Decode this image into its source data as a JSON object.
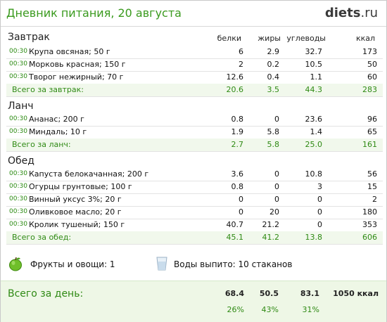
{
  "header": {
    "title": "Дневник питания, 20 августа",
    "logo_main": "diets",
    "logo_tld": ".ru"
  },
  "columns": {
    "protein": "белки",
    "fat": "жиры",
    "carbs": "углеводы",
    "kcal": "ккал"
  },
  "breakfast": {
    "title": "Завтрак",
    "items": [
      {
        "time": "00:30",
        "name": "Крупа овсяная; 50 г",
        "protein": "6",
        "fat": "2.9",
        "carbs": "32.7",
        "kcal": "173"
      },
      {
        "time": "00:30",
        "name": "Морковь красная; 150 г",
        "protein": "2",
        "fat": "0.2",
        "carbs": "10.5",
        "kcal": "50"
      },
      {
        "time": "00:30",
        "name": "Творог нежирный; 70 г",
        "protein": "12.6",
        "fat": "0.4",
        "carbs": "1.1",
        "kcal": "60"
      }
    ],
    "total": {
      "label": "Всего за завтрак:",
      "protein": "20.6",
      "fat": "3.5",
      "carbs": "44.3",
      "kcal": "283"
    }
  },
  "lunch": {
    "title": "Ланч",
    "items": [
      {
        "time": "00:30",
        "name": "Ананас; 200 г",
        "protein": "0.8",
        "fat": "0",
        "carbs": "23.6",
        "kcal": "96"
      },
      {
        "time": "00:30",
        "name": "Миндаль; 10 г",
        "protein": "1.9",
        "fat": "5.8",
        "carbs": "1.4",
        "kcal": "65"
      }
    ],
    "total": {
      "label": "Всего за ланч:",
      "protein": "2.7",
      "fat": "5.8",
      "carbs": "25.0",
      "kcal": "161"
    }
  },
  "dinner": {
    "title": "Обед",
    "items": [
      {
        "time": "00:30",
        "name": "Капуста белокачанная; 200 г",
        "protein": "3.6",
        "fat": "0",
        "carbs": "10.8",
        "kcal": "56"
      },
      {
        "time": "00:30",
        "name": "Огурцы грунтовые; 100 г",
        "protein": "0.8",
        "fat": "0",
        "carbs": "3",
        "kcal": "15"
      },
      {
        "time": "00:30",
        "name": "Винный уксус 3%; 20 г",
        "protein": "0",
        "fat": "0",
        "carbs": "0",
        "kcal": "2"
      },
      {
        "time": "00:30",
        "name": "Оливковое масло; 20 г",
        "protein": "0",
        "fat": "20",
        "carbs": "0",
        "kcal": "180"
      },
      {
        "time": "00:30",
        "name": "Кролик тушеный; 150 г",
        "protein": "40.7",
        "fat": "21.2",
        "carbs": "0",
        "kcal": "353"
      }
    ],
    "total": {
      "label": "Всего за обед:",
      "protein": "45.1",
      "fat": "41.2",
      "carbs": "13.8",
      "kcal": "606"
    }
  },
  "extras": {
    "fruits_label": "Фрукты и овощи: 1",
    "water_label": "Воды выпито: 10 стаканов",
    "fruits_icon": "apple-icon",
    "water_icon": "water-glass-icon"
  },
  "day_total": {
    "label": "Всего за день:",
    "protein": "68.4",
    "fat": "50.5",
    "carbs": "83.1",
    "kcal": "1050 ккал",
    "protein_pct": "26%",
    "fat_pct": "43%",
    "carbs_pct": "31%"
  },
  "colors": {
    "accent_green": "#2f8a14",
    "total_bg": "#f1f8ec",
    "day_bg": "#eef7e6"
  }
}
